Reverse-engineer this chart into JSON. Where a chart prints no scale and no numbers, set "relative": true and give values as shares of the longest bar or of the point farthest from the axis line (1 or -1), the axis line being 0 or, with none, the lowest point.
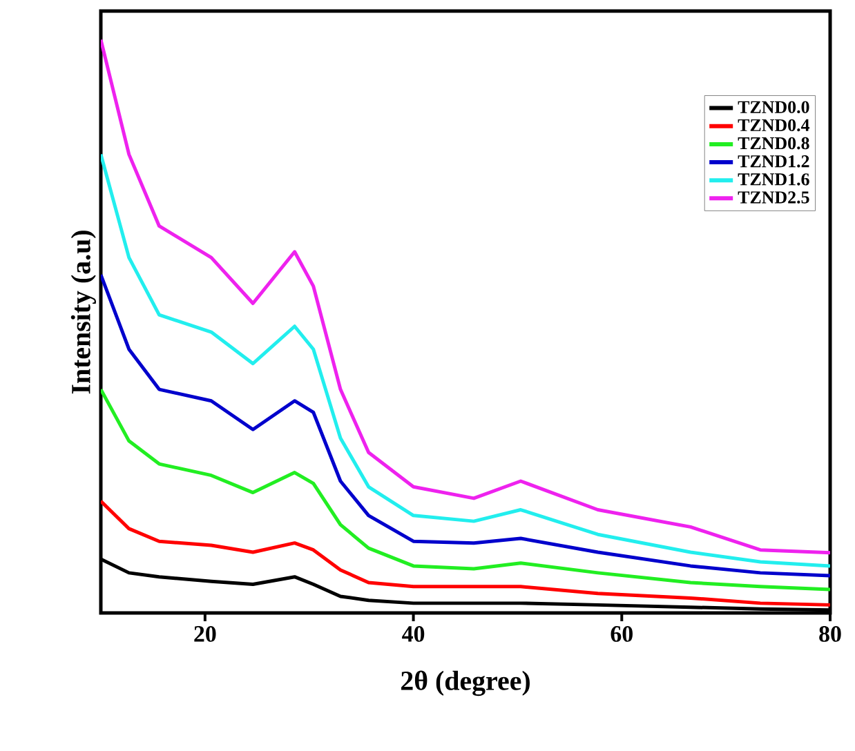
{
  "chart_data": {
    "type": "line",
    "xlabel": "2θ (degree)",
    "ylabel": "Intensity (a.u)",
    "relative": true,
    "x": [
      10,
      12.7,
      15.6,
      20.6,
      24.6,
      28.6,
      30.4,
      33,
      35.7,
      40,
      45.8,
      50.3,
      57.7,
      66.6,
      73.3,
      80
    ],
    "xlim": [
      10,
      80
    ],
    "xticks": [
      20,
      40,
      60,
      80
    ],
    "legend": "top right",
    "grid": false,
    "marker": "none",
    "line_style": "solid",
    "series": [
      {
        "name": "TZND0.0",
        "color": "#000000",
        "values": [
          0.094,
          0.07,
          0.063,
          0.055,
          0.05,
          0.063,
          0.05,
          0.029,
          0.022,
          0.017,
          0.017,
          0.017,
          0.014,
          0.01,
          0.007,
          0.005
        ]
      },
      {
        "name": "TZND0.4",
        "color": "#ff0000",
        "values": [
          0.195,
          0.147,
          0.125,
          0.118,
          0.106,
          0.122,
          0.11,
          0.075,
          0.053,
          0.046,
          0.046,
          0.046,
          0.034,
          0.026,
          0.017,
          0.014
        ]
      },
      {
        "name": "TZND0.8",
        "color": "#22ee22",
        "values": [
          0.39,
          0.3,
          0.26,
          0.24,
          0.21,
          0.245,
          0.226,
          0.154,
          0.113,
          0.082,
          0.077,
          0.087,
          0.07,
          0.053,
          0.046,
          0.041
        ]
      },
      {
        "name": "TZND1.2",
        "color": "#0000cc",
        "values": [
          0.59,
          0.46,
          0.39,
          0.37,
          0.32,
          0.37,
          0.35,
          0.23,
          0.17,
          0.125,
          0.122,
          0.13,
          0.106,
          0.082,
          0.07,
          0.065
        ]
      },
      {
        "name": "TZND1.6",
        "color": "#22eeee",
        "values": [
          0.8,
          0.62,
          0.52,
          0.49,
          0.435,
          0.5,
          0.46,
          0.305,
          0.22,
          0.17,
          0.16,
          0.18,
          0.137,
          0.106,
          0.089,
          0.082
        ]
      },
      {
        "name": "TZND2.5",
        "color": "#ee22ee",
        "values": [
          1.0,
          0.8,
          0.675,
          0.62,
          0.54,
          0.63,
          0.57,
          0.39,
          0.28,
          0.22,
          0.2,
          0.23,
          0.18,
          0.15,
          0.11,
          0.105
        ]
      }
    ]
  }
}
